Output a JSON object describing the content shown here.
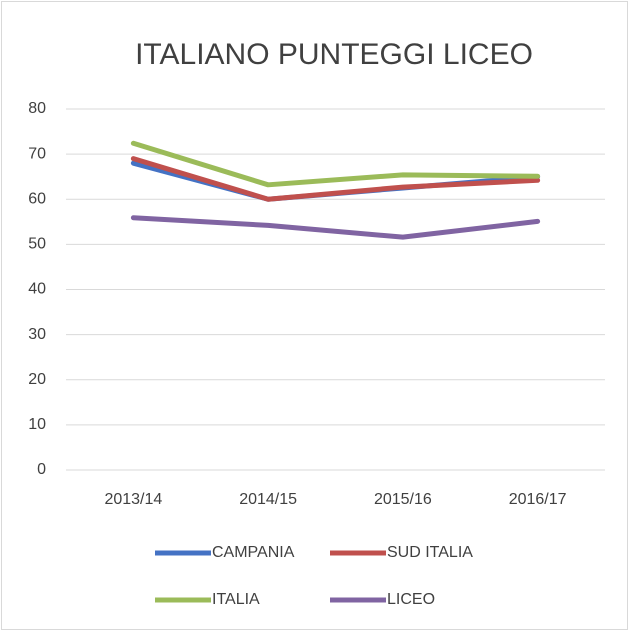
{
  "chart_data": {
    "type": "line",
    "title": "ITALIANO PUNTEGGI LICEO",
    "categories": [
      "2013/14",
      "2014/15",
      "2015/16",
      "2016/17"
    ],
    "series": [
      {
        "name": "CAMPANIA",
        "color": "#4472c4",
        "values": [
          68.0,
          60.0,
          62.5,
          65.0
        ]
      },
      {
        "name": "SUD ITALIA",
        "color": "#c0504d",
        "values": [
          69.0,
          60.0,
          62.7,
          64.2
        ]
      },
      {
        "name": "ITALIA",
        "color": "#9bbb59",
        "values": [
          72.4,
          63.2,
          65.4,
          65.1
        ]
      },
      {
        "name": "LICEO",
        "color": "#8064a2",
        "values": [
          55.9,
          54.2,
          51.6,
          55.1
        ]
      }
    ],
    "ylim": [
      0,
      80
    ],
    "yticks": [
      0,
      10,
      20,
      30,
      40,
      50,
      60,
      70,
      80
    ],
    "grid": true,
    "legend": "bottom"
  }
}
